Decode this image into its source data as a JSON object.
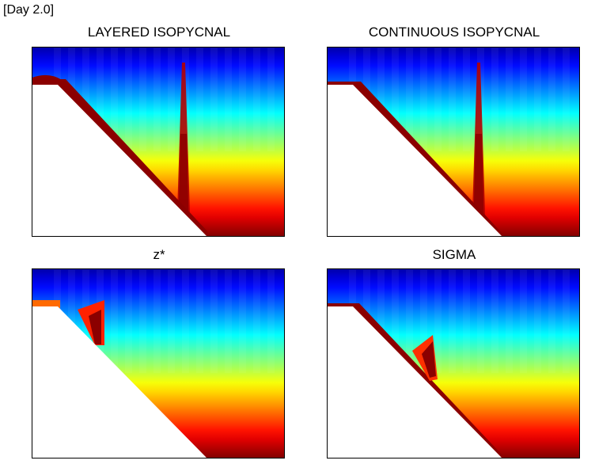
{
  "figure": {
    "time_label": "[Day 2.0]"
  },
  "chart_data": [
    {
      "type": "heatmap",
      "title": "LAYERED ISOPYCNAL",
      "xlabel": "",
      "ylabel": "",
      "colormap": "jet",
      "axes_ticks": false,
      "topography": "shelf with linear slope (white)",
      "features": [
        "dense overflow layer along slope",
        "vertical anomaly column near right"
      ]
    },
    {
      "type": "heatmap",
      "title": "CONTINUOUS ISOPYCNAL",
      "xlabel": "",
      "ylabel": "",
      "colormap": "jet",
      "axes_ticks": false,
      "topography": "shelf with linear slope (white)",
      "features": [
        "thin dense layer along slope",
        "vertical anomaly column near right"
      ]
    },
    {
      "type": "heatmap",
      "title": "z*",
      "xlabel": "",
      "ylabel": "",
      "colormap": "jet",
      "axes_ticks": false,
      "topography": "shelf with linear slope (white)",
      "features": [
        "dense plume stalled near shelf break"
      ]
    },
    {
      "type": "heatmap",
      "title": "SIGMA",
      "xlabel": "",
      "ylabel": "",
      "colormap": "jet",
      "axes_ticks": false,
      "topography": "shelf with linear slope (white)",
      "features": [
        "dense plume mid-slope with spreading tail"
      ]
    }
  ]
}
